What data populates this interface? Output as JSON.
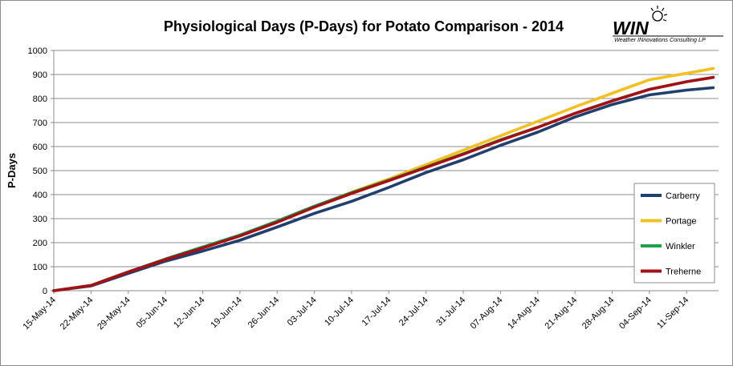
{
  "logo": {
    "brand": "WIN",
    "tagline": "Weather INnovations Consulting LP"
  },
  "chart_data": {
    "type": "line",
    "title": "Physiological  Days  (P-Days)  for  Potato  Comparison  - 2014",
    "xlabel": "",
    "ylabel": "P-Days",
    "ylim": [
      0,
      1000
    ],
    "y_ticks": [
      0,
      100,
      200,
      300,
      400,
      500,
      600,
      700,
      800,
      900,
      1000
    ],
    "x_tick_labels": [
      "15-May-14",
      "22-May-14",
      "29-May-14",
      "05-Jun-14",
      "12-Jun-14",
      "19-Jun-14",
      "26-Jun-14",
      "03-Jul-14",
      "10-Jul-14",
      "17-Jul-14",
      "24-Jul-14",
      "31-Jul-14",
      "07-Aug-14",
      "14-Aug-14",
      "21-Aug-14",
      "28-Aug-14",
      "04-Sep-14",
      "11-Sep-14"
    ],
    "x_dates": [
      "15-May-14",
      "22-May-14",
      "29-May-14",
      "05-Jun-14",
      "12-Jun-14",
      "19-Jun-14",
      "26-Jun-14",
      "03-Jul-14",
      "10-Jul-14",
      "17-Jul-14",
      "24-Jul-14",
      "31-Jul-14",
      "07-Aug-14",
      "14-Aug-14",
      "21-Aug-14",
      "28-Aug-14",
      "04-Sep-14",
      "11-Sep-14",
      "16-Sep-14"
    ],
    "grid": true,
    "legend_position": "right",
    "series": [
      {
        "name": "Carberry",
        "color": "#1f3f6e",
        "values": [
          0,
          20,
          72,
          123,
          165,
          210,
          265,
          322,
          372,
          430,
          492,
          545,
          605,
          660,
          723,
          775,
          815,
          835,
          845
        ]
      },
      {
        "name": "Portage",
        "color": "#f4c01e",
        "values": [
          0,
          22,
          78,
          130,
          178,
          228,
          285,
          350,
          410,
          465,
          525,
          585,
          645,
          705,
          765,
          822,
          878,
          905,
          925
        ]
      },
      {
        "name": "Winkler",
        "color": "#1aa34a",
        "values": [
          0,
          22,
          78,
          132,
          182,
          232,
          290,
          352,
          408,
          460,
          515,
          570,
          628,
          680,
          738,
          790,
          838,
          870,
          888
        ]
      },
      {
        "name": "Treherne",
        "color": "#a50f15",
        "values": [
          0,
          22,
          78,
          130,
          178,
          228,
          285,
          348,
          405,
          458,
          513,
          568,
          626,
          680,
          738,
          790,
          838,
          870,
          888
        ]
      }
    ]
  }
}
